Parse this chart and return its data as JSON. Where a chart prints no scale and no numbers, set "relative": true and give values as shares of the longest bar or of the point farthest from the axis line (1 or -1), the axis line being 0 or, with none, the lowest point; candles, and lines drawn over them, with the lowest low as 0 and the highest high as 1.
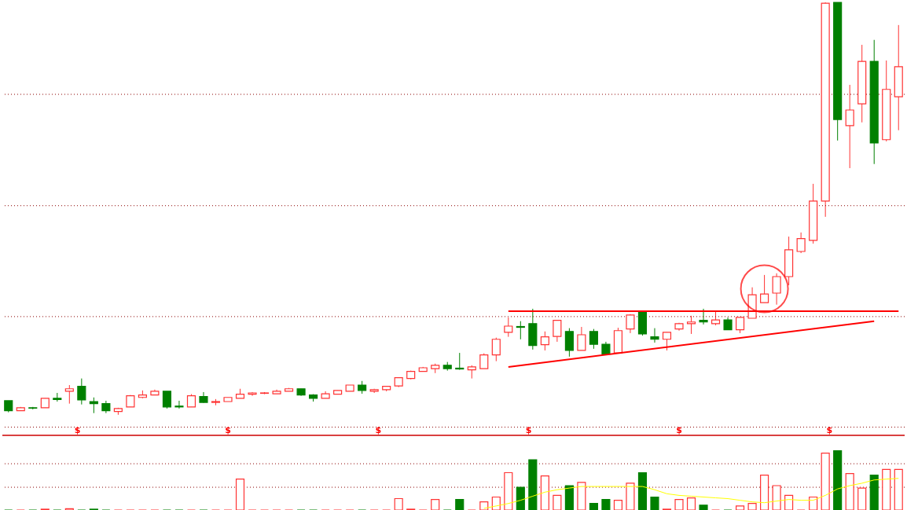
{
  "chart_data": [
    {
      "type": "candlestick",
      "relative": true,
      "categories": [
        null,
        null,
        null,
        null,
        null,
        null,
        null,
        null,
        null,
        null,
        null,
        null,
        null,
        null,
        null,
        null,
        null,
        null,
        null,
        null,
        null,
        null,
        null,
        null,
        null,
        null,
        null,
        null,
        null,
        null,
        null,
        null,
        null,
        null,
        null,
        null,
        null,
        null,
        null,
        null,
        null,
        null,
        null,
        null,
        null,
        null,
        null,
        null,
        null,
        null,
        null,
        null,
        null,
        null,
        null,
        null,
        null,
        null,
        null,
        null,
        null,
        null,
        null,
        null,
        null,
        null,
        null,
        null,
        null,
        null,
        null,
        null,
        null,
        null
      ],
      "ohlc": [
        [
          0.034,
          0.034,
          0.006,
          0.01
        ],
        [
          0.01,
          0.019,
          0.01,
          0.017
        ],
        [
          0.017,
          0.019,
          0.013,
          0.016
        ],
        [
          0.017,
          0.04,
          0.017,
          0.04
        ],
        [
          0.04,
          0.053,
          0.032,
          0.037
        ],
        [
          0.057,
          0.072,
          0.027,
          0.063
        ],
        [
          0.069,
          0.088,
          0.025,
          0.036
        ],
        [
          0.032,
          0.042,
          0.004,
          0.027
        ],
        [
          0.027,
          0.034,
          0.004,
          0.01
        ],
        [
          0.008,
          0.017,
          0,
          0.015
        ],
        [
          0.019,
          0.048,
          0.019,
          0.046
        ],
        [
          0.042,
          0.059,
          0.04,
          0.048
        ],
        [
          0.048,
          0.061,
          0.048,
          0.057
        ],
        [
          0.057,
          0.057,
          0.015,
          0.019
        ],
        [
          0.021,
          0.034,
          0.015,
          0.019
        ],
        [
          0.019,
          0.05,
          0.019,
          0.046
        ],
        [
          0.044,
          0.055,
          0.029,
          0.03
        ],
        [
          0.03,
          0.038,
          0.023,
          0.032
        ],
        [
          0.032,
          0.042,
          0.032,
          0.042
        ],
        [
          0.04,
          0.063,
          0.04,
          0.05
        ],
        [
          0.05,
          0.055,
          0.046,
          0.053
        ],
        [
          0.052,
          0.055,
          0.05,
          0.053
        ],
        [
          0.051,
          0.061,
          0.051,
          0.057
        ],
        [
          0.057,
          0.065,
          0.057,
          0.063
        ],
        [
          0.063,
          0.063,
          0.046,
          0.048
        ],
        [
          0.048,
          0.05,
          0.032,
          0.04
        ],
        [
          0.04,
          0.057,
          0.04,
          0.051
        ],
        [
          0.05,
          0.059,
          0.05,
          0.059
        ],
        [
          0.057,
          0.072,
          0.057,
          0.072
        ],
        [
          0.072,
          0.082,
          0.051,
          0.059
        ],
        [
          0.057,
          0.063,
          0.053,
          0.061
        ],
        [
          0.061,
          0.07,
          0.057,
          0.069
        ],
        [
          0.07,
          0.09,
          0.067,
          0.09
        ],
        [
          0.088,
          0.107,
          0.086,
          0.105
        ],
        [
          0.105,
          0.116,
          0.105,
          0.114
        ],
        [
          0.112,
          0.124,
          0.101,
          0.12
        ],
        [
          0.12,
          0.128,
          0.107,
          0.112
        ],
        [
          0.113,
          0.15,
          0.109,
          0.111
        ],
        [
          0.109,
          0.12,
          0.088,
          0.116
        ],
        [
          0.112,
          0.149,
          0.112,
          0.145
        ],
        [
          0.145,
          0.187,
          0.13,
          0.183
        ],
        [
          0.2,
          0.236,
          0.189,
          0.215
        ],
        [
          0.214,
          0.227,
          0.183,
          0.212
        ],
        [
          0.221,
          0.257,
          0.158,
          0.168
        ],
        [
          0.17,
          0.202,
          0.156,
          0.189
        ],
        [
          0.19,
          0.23,
          0.177,
          0.229
        ],
        [
          0.202,
          0.21,
          0.141,
          0.156
        ],
        [
          0.156,
          0.213,
          0.156,
          0.194
        ],
        [
          0.202,
          0.208,
          0.16,
          0.171
        ],
        [
          0.171,
          0.177,
          0.147,
          0.147
        ],
        [
          0.15,
          0.211,
          0.15,
          0.204
        ],
        [
          0.208,
          0.244,
          0.198,
          0.242
        ],
        [
          0.251,
          0.251,
          0.192,
          0.196
        ],
        [
          0.189,
          0.21,
          0.175,
          0.183
        ],
        [
          0.183,
          0.2,
          0.156,
          0.2
        ],
        [
          0.208,
          0.223,
          0.204,
          0.221
        ],
        [
          0.221,
          0.24,
          0.196,
          0.225
        ],
        [
          0.229,
          0.257,
          0.219,
          0.225
        ],
        [
          0.221,
          0.25,
          0.217,
          0.23
        ],
        [
          0.23,
          0.236,
          0.206,
          0.206
        ],
        [
          0.206,
          0.236,
          0.198,
          0.236
        ],
        [
          0.234,
          0.309,
          0.234,
          0.291
        ],
        [
          0.272,
          0.339,
          0.272,
          0.293
        ],
        [
          0.295,
          0.343,
          0.267,
          0.335
        ],
        [
          0.335,
          0.432,
          0.314,
          0.4
        ],
        [
          0.396,
          0.442,
          0.392,
          0.427
        ],
        [
          0.423,
          0.56,
          0.415,
          0.518
        ],
        [
          0.518,
          1,
          0.48,
          0.998
        ],
        [
          1,
          1,
          0.665,
          0.716
        ],
        [
          0.701,
          0.8,
          0.598,
          0.739
        ],
        [
          0.754,
          0.897,
          0.709,
          0.857
        ],
        [
          0.857,
          0.909,
          0.608,
          0.659
        ],
        [
          0.667,
          0.859,
          0.663,
          0.789
        ],
        [
          0.771,
          0.945,
          0.69,
          0.844
        ]
      ],
      "colors": [
        "#008000",
        "#ff3333",
        "#008000",
        "#ff3333",
        "#008000",
        "#ff3333",
        "#008000",
        "#008000",
        "#008000",
        "#ff3333",
        "#ff3333",
        "#ff3333",
        "#ff3333",
        "#008000",
        "#008000",
        "#ff3333",
        "#008000",
        "#ff3333",
        "#ff3333",
        "#ff3333",
        "#ff3333",
        "#ff3333",
        "#ff3333",
        "#ff3333",
        "#008000",
        "#008000",
        "#ff3333",
        "#ff3333",
        "#ff3333",
        "#008000",
        "#ff3333",
        "#ff3333",
        "#ff3333",
        "#ff3333",
        "#ff3333",
        "#ff3333",
        "#008000",
        "#008000",
        "#ff3333",
        "#ff3333",
        "#ff3333",
        "#ff3333",
        "#008000",
        "#008000",
        "#ff3333",
        "#ff3333",
        "#008000",
        "#ff3333",
        "#008000",
        "#008000",
        "#ff3333",
        "#ff3333",
        "#008000",
        "#008000",
        "#ff3333",
        "#ff3333",
        "#ff3333",
        "#008000",
        "#ff3333",
        "#008000",
        "#ff3333",
        "#ff3333",
        "#ff3333",
        "#ff3333",
        "#ff3333",
        "#ff3333",
        "#ff3333",
        "#ff3333",
        "#008000",
        "#ff3333",
        "#ff3333",
        "#008000",
        "#ff3333",
        "#ff3333"
      ],
      "series": [
        {
          "type": "line",
          "color": "#ff0000",
          "values": [
            null,
            null,
            null,
            null,
            null,
            null,
            null,
            null,
            null,
            null,
            null,
            null,
            null,
            null,
            null,
            null,
            null,
            null,
            null,
            null,
            null,
            null,
            null,
            null,
            null,
            null,
            null,
            null,
            null,
            null,
            null,
            null,
            null,
            null,
            null,
            null,
            null,
            null,
            null,
            null,
            null,
            0.116,
            null,
            null,
            null,
            null,
            null,
            null,
            null,
            null,
            null,
            null,
            null,
            null,
            null,
            null,
            null,
            null,
            null,
            null,
            null,
            null,
            null,
            null,
            null,
            null,
            null,
            null,
            null,
            null,
            null,
            0.227,
            null,
            null
          ]
        },
        {
          "type": "line",
          "color": "#ff0000",
          "values": [
            null,
            null,
            null,
            null,
            null,
            null,
            null,
            null,
            null,
            null,
            null,
            null,
            null,
            null,
            null,
            null,
            null,
            null,
            null,
            null,
            null,
            null,
            null,
            null,
            null,
            null,
            null,
            null,
            null,
            null,
            null,
            null,
            null,
            null,
            null,
            null,
            null,
            null,
            null,
            null,
            null,
            0.251,
            null,
            null,
            null,
            null,
            null,
            null,
            null,
            null,
            null,
            null,
            null,
            null,
            null,
            null,
            null,
            null,
            null,
            null,
            null,
            null,
            null,
            null,
            null,
            null,
            null,
            null,
            null,
            null,
            null,
            null,
            null,
            0.251
          ]
        }
      ],
      "ref_lines": [
        {
          "axis": "y",
          "value": 0.777,
          "color": "#8b0000",
          "line_style": "dotted"
        },
        {
          "axis": "y",
          "value": 0.507,
          "color": "#8b0000",
          "line_style": "dotted"
        },
        {
          "axis": "y",
          "value": 0.238,
          "color": "#8b0000",
          "line_style": "dotted"
        },
        {
          "axis": "y",
          "value": -0.03,
          "color": "#8b0000",
          "line_style": "dotted"
        }
      ],
      "annotations": [
        "$",
        "$",
        "$",
        "$",
        "$",
        "$"
      ]
    },
    {
      "type": "bar",
      "relative": true,
      "categories": [
        null,
        null,
        null,
        null,
        null,
        null,
        null,
        null,
        null,
        null,
        null,
        null,
        null,
        null,
        null,
        null,
        null,
        null,
        null,
        null,
        null,
        null,
        null,
        null,
        null,
        null,
        null,
        null,
        null,
        null,
        null,
        null,
        null,
        null,
        null,
        null,
        null,
        null,
        null,
        null,
        null,
        null,
        null,
        null,
        null,
        null,
        null,
        null,
        null,
        null,
        null,
        null,
        null,
        null,
        null,
        null,
        null,
        null,
        null,
        null,
        null,
        null,
        null,
        null,
        null,
        null,
        null,
        null,
        null,
        null,
        null,
        null,
        null,
        null
      ],
      "series": [
        {
          "type": "bar",
          "colors": [
            "#008000",
            "#ff3333",
            "#008000",
            "#ff3333",
            "#008000",
            "#ff3333",
            "#008000",
            "#008000",
            "#008000",
            "#ff3333",
            "#ff3333",
            "#ff3333",
            "#ff3333",
            "#008000",
            "#008000",
            "#ff3333",
            "#008000",
            "#ff3333",
            "#ff3333",
            "#ff3333",
            "#ff3333",
            "#ff3333",
            "#ff3333",
            "#ff3333",
            "#008000",
            "#008000",
            "#ff3333",
            "#ff3333",
            "#ff3333",
            "#008000",
            "#ff3333",
            "#ff3333",
            "#ff3333",
            "#ff3333",
            "#ff3333",
            "#ff3333",
            "#008000",
            "#008000",
            "#ff3333",
            "#ff3333",
            "#ff3333",
            "#ff3333",
            "#008000",
            "#008000",
            "#ff3333",
            "#ff3333",
            "#008000",
            "#ff3333",
            "#008000",
            "#008000",
            "#ff3333",
            "#ff3333",
            "#008000",
            "#008000",
            "#ff3333",
            "#ff3333",
            "#ff3333",
            "#008000",
            "#ff3333",
            "#008000",
            "#ff3333",
            "#ff3333",
            "#ff3333",
            "#ff3333",
            "#ff3333",
            "#ff3333",
            "#ff3333",
            "#ff3333",
            "#008000",
            "#ff3333",
            "#ff3333",
            "#008000",
            "#ff3333",
            "#ff3333"
          ],
          "values": [
            0,
            0,
            0,
            0.014,
            0,
            0.021,
            0,
            0.014,
            0,
            0,
            0,
            0,
            0,
            0,
            0,
            0,
            0,
            0,
            0,
            0.521,
            0,
            0,
            0,
            0,
            0,
            0,
            0,
            0,
            0,
            0,
            0,
            0,
            0.192,
            0.014,
            0,
            0.178,
            0,
            0.178,
            0,
            0.137,
            0.219,
            0.63,
            0.384,
            0.849,
            0.575,
            0.247,
            0.411,
            0.466,
            0.11,
            0.178,
            0.164,
            0.452,
            0.63,
            0.219,
            0.014,
            0.178,
            0.205,
            0.082,
            0,
            0,
            0.068,
            0.11,
            0.589,
            0.411,
            0.247,
            0,
            0.219,
            0.959,
            1,
            0.616,
            0.37,
            0.589,
            0.685,
            0.685
          ]
        },
        {
          "type": "line",
          "color": "#ffff00",
          "values": [
            null,
            null,
            null,
            null,
            null,
            null,
            null,
            null,
            null,
            null,
            null,
            null,
            null,
            null,
            null,
            null,
            null,
            null,
            null,
            null,
            null,
            null,
            null,
            null,
            null,
            null,
            null,
            null,
            null,
            null,
            null,
            null,
            null,
            null,
            null,
            null,
            null,
            null,
            null,
            0.027,
            0.068,
            0.11,
            0.164,
            0.233,
            0.301,
            0.342,
            0.37,
            0.397,
            0.397,
            0.397,
            0.397,
            0.397,
            0.397,
            0.342,
            0.274,
            0.247,
            0.233,
            0.219,
            0.205,
            0.192,
            0.164,
            0.137,
            0.123,
            0.151,
            0.178,
            0.164,
            0.164,
            0.247,
            0.356,
            0.411,
            0.452,
            0.507,
            0.521,
            0.534
          ]
        }
      ],
      "ref_lines": [
        {
          "axis": "y",
          "value": 0.781,
          "color": "#8b0000",
          "line_style": "dotted"
        },
        {
          "axis": "y",
          "value": 0.384,
          "color": "#8b0000",
          "line_style": "dotted"
        }
      ]
    }
  ]
}
